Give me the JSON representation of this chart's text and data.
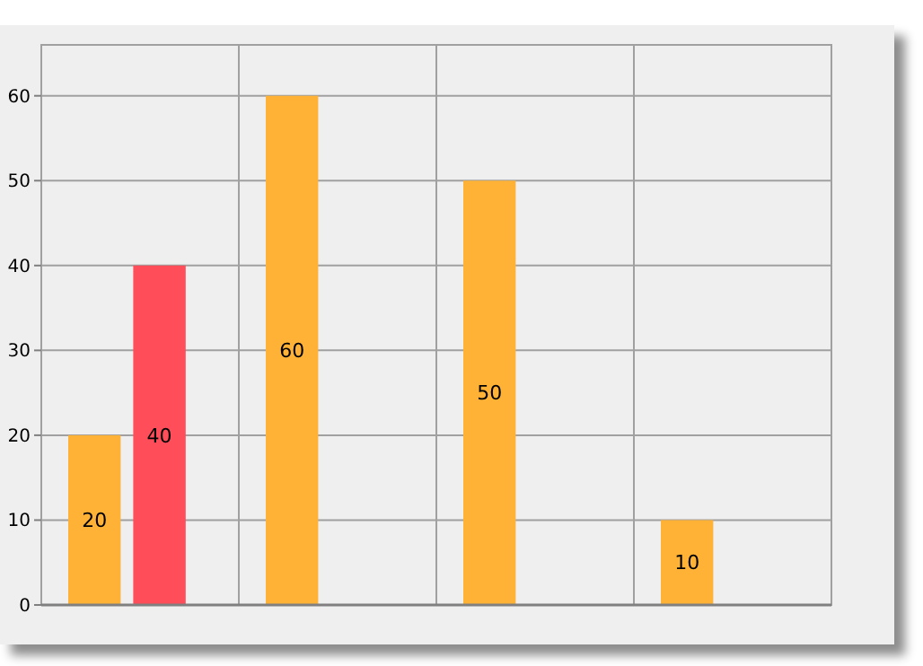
{
  "chart_data": {
    "type": "bar",
    "categories": [
      null,
      null,
      null,
      null
    ],
    "series": [
      {
        "color": "#ffb236",
        "values": [
          20,
          60,
          50,
          10
        ]
      },
      {
        "color": "#ff4d5a",
        "values": [
          40,
          null,
          null,
          null
        ]
      }
    ],
    "ylim": [
      0,
      66
    ],
    "yticks": [
      0,
      10,
      20,
      30,
      40,
      50,
      60
    ],
    "grid": true,
    "data_labels": true,
    "tick_labels": "y"
  }
}
